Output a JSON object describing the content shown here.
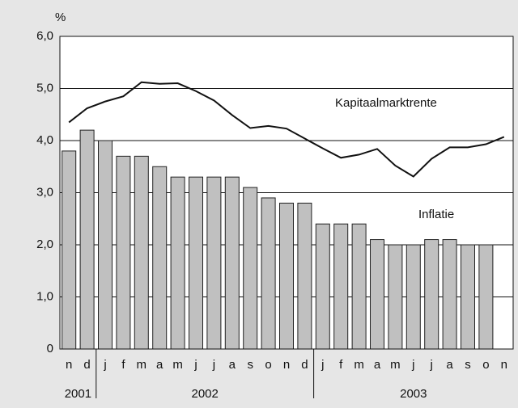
{
  "chart_data": {
    "type": "bar",
    "unit": "%",
    "categories": [
      "n",
      "d",
      "j",
      "f",
      "m",
      "a",
      "m",
      "j",
      "j",
      "a",
      "s",
      "o",
      "n",
      "d",
      "j",
      "f",
      "m",
      "a",
      "m",
      "j",
      "j",
      "a",
      "s",
      "o",
      "n"
    ],
    "groups": [
      {
        "label": "2001",
        "count": 2
      },
      {
        "label": "2002",
        "count": 12
      },
      {
        "label": "2003",
        "count": 11
      }
    ],
    "series": [
      {
        "name": "Inflatie",
        "type": "bar",
        "color": "#c0c0c0",
        "values": [
          3.8,
          4.2,
          4.0,
          3.7,
          3.7,
          3.5,
          3.3,
          3.3,
          3.3,
          3.3,
          3.1,
          2.9,
          2.8,
          2.8,
          2.4,
          2.4,
          2.4,
          2.1,
          2.0,
          2.0,
          2.1,
          2.1,
          2.0,
          2.0,
          null
        ]
      },
      {
        "name": "Kapitaalmarktrente",
        "type": "line",
        "color": "#111111",
        "values": [
          4.35,
          4.62,
          4.75,
          4.85,
          5.12,
          5.09,
          5.1,
          4.95,
          4.77,
          4.49,
          4.24,
          4.28,
          4.23,
          4.04,
          3.85,
          3.67,
          3.73,
          3.84,
          3.52,
          3.31,
          3.65,
          3.87,
          3.87,
          3.93,
          4.07
        ]
      }
    ],
    "ylim": [
      0,
      6
    ],
    "yticks": [
      0,
      {
        "value": 1,
        "label": "1,0"
      },
      {
        "value": 2,
        "label": "2,0"
      },
      {
        "value": 3,
        "label": "3,0"
      },
      {
        "value": 4,
        "label": "4,0"
      },
      {
        "value": 5,
        "label": "5,0"
      },
      {
        "value": 6,
        "label": "6,0"
      }
    ],
    "grid": true
  }
}
